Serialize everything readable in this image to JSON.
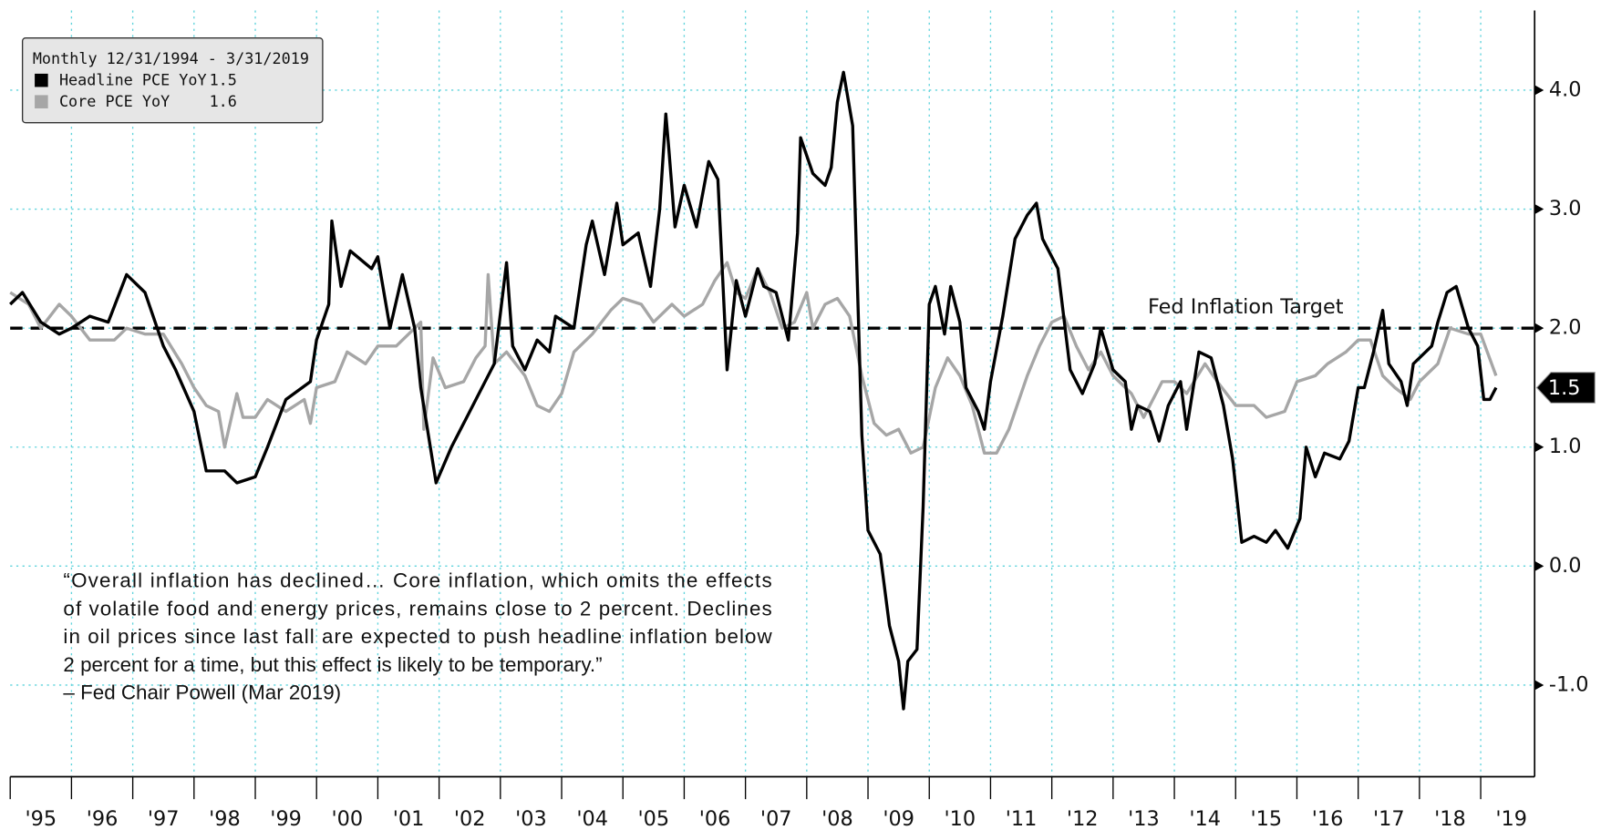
{
  "chart_data": {
    "type": "line",
    "legend_title": "Monthly 12/31/1994 - 3/31/2019",
    "series": [
      {
        "name": "Headline PCE YoY",
        "color": "#000000",
        "last": 1.5,
        "x": [
          1995.0,
          1995.2,
          1995.5,
          1995.8,
          1996.0,
          1996.3,
          1996.6,
          1996.9,
          1997.2,
          1997.5,
          1997.7,
          1998.0,
          1998.2,
          1998.5,
          1998.7,
          1999.0,
          1999.2,
          1999.5,
          1999.9,
          2000.0,
          2000.2,
          2000.25,
          2000.4,
          2000.55,
          2000.9,
          2001.0,
          2001.2,
          2001.4,
          2001.6,
          2001.7,
          2001.95,
          2002.2,
          2002.4,
          2002.6,
          2002.9,
          2003.1,
          2003.2,
          2003.4,
          2003.6,
          2003.8,
          2003.9,
          2004.2,
          2004.4,
          2004.5,
          2004.7,
          2004.9,
          2005.0,
          2005.25,
          2005.45,
          2005.6,
          2005.7,
          2005.75,
          2005.85,
          2006.0,
          2006.2,
          2006.4,
          2006.55,
          2006.7,
          2006.85,
          2007.0,
          2007.2,
          2007.3,
          2007.5,
          2007.7,
          2007.85,
          2007.9,
          2008.1,
          2008.3,
          2008.4,
          2008.5,
          2008.6,
          2008.75,
          2008.9,
          2009.0,
          2009.2,
          2009.35,
          2009.5,
          2009.58,
          2009.65,
          2009.8,
          2009.9,
          2010.0,
          2010.1,
          2010.25,
          2010.35,
          2010.5,
          2010.6,
          2010.8,
          2010.9,
          2011.0,
          2011.2,
          2011.4,
          2011.6,
          2011.75,
          2011.85,
          2012.0,
          2012.1,
          2012.3,
          2012.5,
          2012.7,
          2012.8,
          2013.0,
          2013.2,
          2013.3,
          2013.4,
          2013.6,
          2013.75,
          2013.9,
          2014.1,
          2014.2,
          2014.4,
          2014.6,
          2014.8,
          2014.95,
          2015.1,
          2015.3,
          2015.5,
          2015.65,
          2015.85,
          2016.05,
          2016.15,
          2016.3,
          2016.45,
          2016.7,
          2016.85,
          2017.0,
          2017.1,
          2017.25,
          2017.4,
          2017.5,
          2017.7,
          2017.8,
          2017.9,
          2018.0,
          2018.2,
          2018.3,
          2018.45,
          2018.6,
          2018.8,
          2018.95,
          2019.05,
          2019.15,
          2019.25
        ],
        "values": [
          2.2,
          2.3,
          2.05,
          1.95,
          2.0,
          2.1,
          2.05,
          2.45,
          2.3,
          1.85,
          1.65,
          1.3,
          0.8,
          0.8,
          0.7,
          0.75,
          1.0,
          1.4,
          1.55,
          1.9,
          2.2,
          2.9,
          2.35,
          2.65,
          2.5,
          2.6,
          2.0,
          2.45,
          2.0,
          1.5,
          0.7,
          1.0,
          1.2,
          1.4,
          1.7,
          2.55,
          1.85,
          1.65,
          1.9,
          1.8,
          2.1,
          2.0,
          2.7,
          2.9,
          2.45,
          3.05,
          2.7,
          2.8,
          2.35,
          3.0,
          3.8,
          3.5,
          2.85,
          3.2,
          2.85,
          3.4,
          3.25,
          1.65,
          2.4,
          2.1,
          2.5,
          2.35,
          2.3,
          1.9,
          2.8,
          3.6,
          3.3,
          3.2,
          3.35,
          3.9,
          4.15,
          3.7,
          1.1,
          0.3,
          0.1,
          -0.5,
          -0.8,
          -1.2,
          -0.8,
          -0.7,
          0.5,
          2.2,
          2.35,
          1.95,
          2.35,
          2.05,
          1.5,
          1.3,
          1.15,
          1.55,
          2.1,
          2.75,
          2.95,
          3.05,
          2.75,
          2.6,
          2.5,
          1.65,
          1.45,
          1.7,
          2.0,
          1.65,
          1.55,
          1.15,
          1.35,
          1.3,
          1.05,
          1.35,
          1.55,
          1.15,
          1.8,
          1.75,
          1.35,
          0.9,
          0.2,
          0.25,
          0.2,
          0.3,
          0.15,
          0.4,
          1.0,
          0.75,
          0.95,
          0.9,
          1.05,
          1.5,
          1.5,
          1.8,
          2.15,
          1.7,
          1.55,
          1.35,
          1.7,
          1.75,
          1.85,
          2.05,
          2.3,
          2.35,
          2.0,
          1.85,
          1.4,
          1.4,
          1.5
        ]
      },
      {
        "name": "Core PCE YoY",
        "color": "#a6a6a6",
        "last": 1.6,
        "x": [
          1995.0,
          1995.3,
          1995.5,
          1995.8,
          1996.0,
          1996.3,
          1996.7,
          1996.9,
          1997.2,
          1997.5,
          1997.8,
          1998.0,
          1998.2,
          1998.4,
          1998.5,
          1998.7,
          1998.8,
          1999.0,
          1999.2,
          1999.5,
          1999.8,
          1999.9,
          2000.0,
          2000.3,
          2000.5,
          2000.8,
          2001.0,
          2001.3,
          2001.6,
          2001.7,
          2001.75,
          2001.9,
          2002.1,
          2002.4,
          2002.6,
          2002.75,
          2002.8,
          2002.9,
          2003.1,
          2003.4,
          2003.6,
          2003.8,
          2004.0,
          2004.2,
          2004.5,
          2004.8,
          2005.0,
          2005.3,
          2005.5,
          2005.8,
          2006.0,
          2006.3,
          2006.5,
          2006.7,
          2006.85,
          2007.0,
          2007.2,
          2007.4,
          2007.6,
          2007.8,
          2008.0,
          2008.1,
          2008.3,
          2008.5,
          2008.7,
          2008.9,
          2009.1,
          2009.3,
          2009.5,
          2009.7,
          2009.9,
          2010.1,
          2010.3,
          2010.5,
          2010.7,
          2010.9,
          2011.1,
          2011.3,
          2011.6,
          2011.8,
          2012.0,
          2012.2,
          2012.4,
          2012.6,
          2012.8,
          2013.0,
          2013.3,
          2013.5,
          2013.8,
          2014.0,
          2014.2,
          2014.5,
          2014.7,
          2015.0,
          2015.3,
          2015.5,
          2015.8,
          2016.0,
          2016.3,
          2016.5,
          2016.8,
          2017.0,
          2017.2,
          2017.4,
          2017.6,
          2017.85,
          2018.0,
          2018.3,
          2018.5,
          2018.8,
          2019.0,
          2019.25
        ],
        "values": [
          2.3,
          2.2,
          2.0,
          2.2,
          2.1,
          1.9,
          1.9,
          2.0,
          1.95,
          1.95,
          1.7,
          1.5,
          1.35,
          1.3,
          1.0,
          1.45,
          1.25,
          1.25,
          1.4,
          1.3,
          1.4,
          1.2,
          1.5,
          1.55,
          1.8,
          1.7,
          1.85,
          1.85,
          2.0,
          2.05,
          1.15,
          1.75,
          1.5,
          1.55,
          1.75,
          1.85,
          2.45,
          1.7,
          1.8,
          1.6,
          1.35,
          1.3,
          1.45,
          1.8,
          1.95,
          2.15,
          2.25,
          2.2,
          2.05,
          2.2,
          2.1,
          2.2,
          2.4,
          2.55,
          2.3,
          2.25,
          2.5,
          2.3,
          2.0,
          2.05,
          2.3,
          2.0,
          2.2,
          2.25,
          2.1,
          1.6,
          1.2,
          1.1,
          1.15,
          0.95,
          1.0,
          1.5,
          1.75,
          1.6,
          1.35,
          0.95,
          0.95,
          1.15,
          1.6,
          1.85,
          2.05,
          2.1,
          1.85,
          1.65,
          1.8,
          1.6,
          1.45,
          1.25,
          1.55,
          1.55,
          1.45,
          1.7,
          1.55,
          1.35,
          1.35,
          1.25,
          1.3,
          1.55,
          1.6,
          1.7,
          1.8,
          1.9,
          1.9,
          1.6,
          1.5,
          1.4,
          1.55,
          1.7,
          2.0,
          1.95,
          1.95,
          1.6
        ]
      }
    ],
    "target": {
      "label": "Fed Inflation Target",
      "value": 2
    },
    "annotation_lines": [
      "“Overall inflation has declined… Core inflation, which omits the effects",
      "of volatile food and energy prices, remains close to 2 percent. Declines",
      "in oil prices since last fall are expected to push headline inflation below",
      "2 percent for a time, but this effect is likely to be temporary.”",
      "– Fed Chair Powell (Mar 2019)"
    ],
    "xlim": [
      1995,
      2019.88
    ],
    "xticks": [
      {
        "value": 1995,
        "label": "'95"
      },
      {
        "value": 1996,
        "label": "'96"
      },
      {
        "value": 1997,
        "label": "'97"
      },
      {
        "value": 1998,
        "label": "'98"
      },
      {
        "value": 1999,
        "label": "'99"
      },
      {
        "value": 2000,
        "label": "'00"
      },
      {
        "value": 2001,
        "label": "'01"
      },
      {
        "value": 2002,
        "label": "'02"
      },
      {
        "value": 2003,
        "label": "'03"
      },
      {
        "value": 2004,
        "label": "'04"
      },
      {
        "value": 2005,
        "label": "'05"
      },
      {
        "value": 2006,
        "label": "'06"
      },
      {
        "value": 2007,
        "label": "'07"
      },
      {
        "value": 2008,
        "label": "'08"
      },
      {
        "value": 2009,
        "label": "'09"
      },
      {
        "value": 2010,
        "label": "'10"
      },
      {
        "value": 2011,
        "label": "'11"
      },
      {
        "value": 2012,
        "label": "'12"
      },
      {
        "value": 2013,
        "label": "'13"
      },
      {
        "value": 2014,
        "label": "'14"
      },
      {
        "value": 2015,
        "label": "'15"
      },
      {
        "value": 2016,
        "label": "'16"
      },
      {
        "value": 2017,
        "label": "'17"
      },
      {
        "value": 2018,
        "label": "'18"
      },
      {
        "value": 2019,
        "label": "'19"
      }
    ],
    "ylim": [
      -1.77,
      4.67
    ],
    "yticks": [
      {
        "value": -1,
        "label": "-1.0"
      },
      {
        "value": 0,
        "label": "0.0"
      },
      {
        "value": 1,
        "label": "1.0"
      },
      {
        "value": 2,
        "label": "2.0"
      },
      {
        "value": 3,
        "label": "3.0"
      },
      {
        "value": 4,
        "label": "4.0"
      }
    ],
    "grid": true,
    "grid_color": "#5fd3dc"
  }
}
